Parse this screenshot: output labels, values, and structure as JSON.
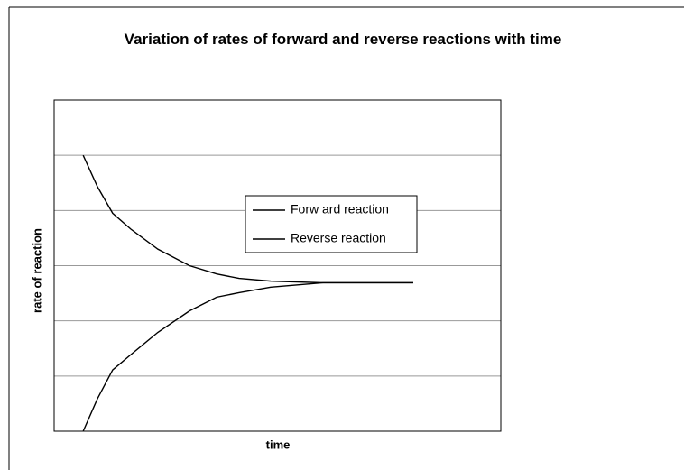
{
  "chart_data": {
    "type": "line",
    "title": "Variation of rates of forward and reverse reactions with time",
    "xlabel": "time",
    "ylabel": "rate of reaction",
    "x": [
      0.65,
      0.97,
      1.31,
      1.72,
      2.32,
      3.03,
      3.64,
      4.14,
      4.85,
      6.02,
      8.04
    ],
    "series": [
      {
        "name": "Forw ard reaction",
        "color": "#000000",
        "values": [
          5.0,
          4.43,
          3.95,
          3.66,
          3.3,
          3.0,
          2.85,
          2.77,
          2.72,
          2.69,
          2.69
        ]
      },
      {
        "name": "Reverse reaction",
        "color": "#000000",
        "values": [
          0,
          0.59,
          1.11,
          1.39,
          1.79,
          2.18,
          2.43,
          2.51,
          2.61,
          2.69,
          2.69
        ]
      }
    ],
    "xlim": [
      0,
      10
    ],
    "ylim": [
      0,
      6
    ],
    "yticks": [
      1,
      2,
      3,
      4,
      5
    ],
    "grid": true
  }
}
